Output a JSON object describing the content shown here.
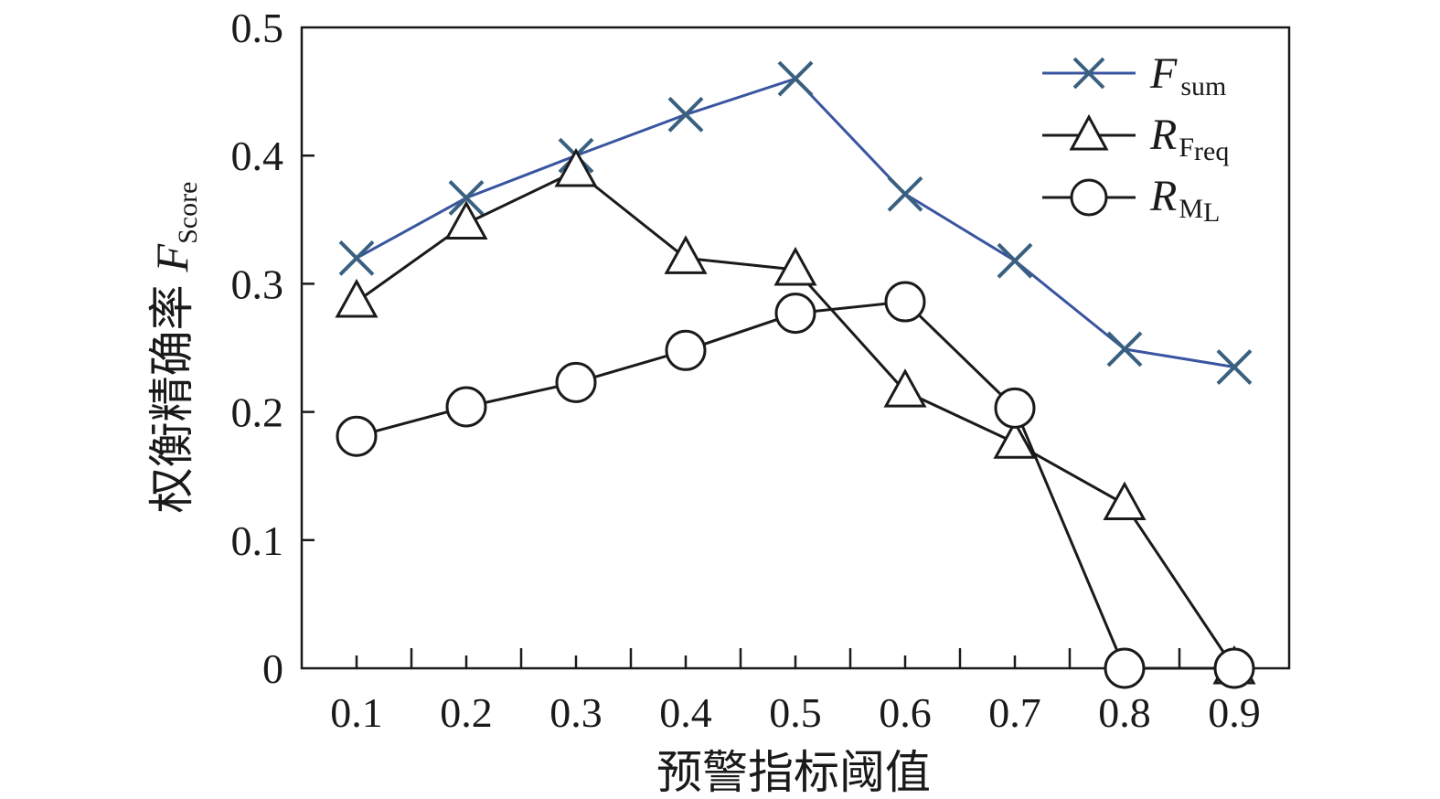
{
  "chart_data": {
    "type": "line",
    "x": [
      0.1,
      0.2,
      0.3,
      0.4,
      0.5,
      0.6,
      0.7,
      0.8,
      0.9
    ],
    "xticks": [
      "0.1",
      "0.2",
      "0.3",
      "0.4",
      "0.5",
      "0.6",
      "0.7",
      "0.8",
      "0.9"
    ],
    "yticks": [
      "0",
      "0.1",
      "0.2",
      "0.3",
      "0.4",
      "0.5"
    ],
    "xlim": [
      0.05,
      0.95
    ],
    "ylim": [
      0,
      0.5
    ],
    "xlabel": "预警指标阈值",
    "ylabel": "权衡精确率",
    "ylabel_symbol": "F",
    "ylabel_subscript": "Score",
    "grid": false,
    "legend_position": "top-right",
    "series": [
      {
        "name": "F",
        "name_subscript": "sum",
        "marker": "x",
        "color": "#3a55a0",
        "marker_color": "#3a6080",
        "values": [
          0.32,
          0.367,
          0.4,
          0.432,
          0.46,
          0.37,
          0.318,
          0.249,
          0.235
        ]
      },
      {
        "name": "R",
        "name_subscript": "F",
        "name_subsubscript": "req",
        "marker": "triangle",
        "color": "#1a1a1a",
        "marker_color": "#1a1a1a",
        "values": [
          0.286,
          0.347,
          0.388,
          0.32,
          0.311,
          0.216,
          0.176,
          0.128,
          0.0
        ]
      },
      {
        "name": "R",
        "name_subscript": "M",
        "name_subsubscript": "L",
        "marker": "circle",
        "color": "#1a1a1a",
        "marker_color": "#1a1a1a",
        "values": [
          0.181,
          0.204,
          0.223,
          0.248,
          0.277,
          0.286,
          0.203,
          0.0,
          0.0
        ]
      }
    ]
  }
}
